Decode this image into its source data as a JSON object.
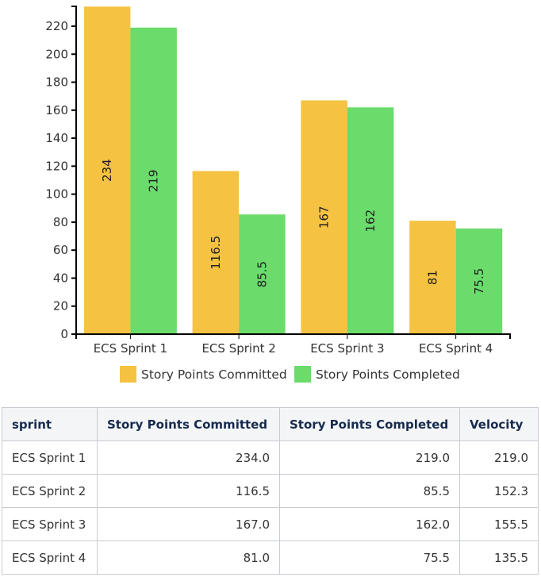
{
  "chart_data": {
    "type": "bar",
    "title": "",
    "xlabel": "",
    "ylabel": "",
    "ylim": [
      0,
      234
    ],
    "yticks": [
      0,
      20,
      40,
      60,
      80,
      100,
      120,
      140,
      160,
      180,
      200,
      220
    ],
    "categories": [
      "ECS Sprint 1",
      "ECS Sprint 2",
      "ECS Sprint 3",
      "ECS Sprint 4"
    ],
    "series": [
      {
        "name": "Story Points Committed",
        "color": "#f5c242",
        "values": [
          234,
          116.5,
          167,
          81
        ],
        "labels": [
          "234",
          "116.5",
          "167",
          "81"
        ]
      },
      {
        "name": "Story Points Completed",
        "color": "#6bdb6b",
        "values": [
          219,
          85.5,
          162,
          75.5
        ],
        "labels": [
          "219",
          "85.5",
          "162",
          "75.5"
        ]
      }
    ],
    "legend_position": "bottom",
    "grid": false
  },
  "table": {
    "headers": [
      "sprint",
      "Story Points Committed",
      "Story Points Completed",
      "Velocity"
    ],
    "rows": [
      [
        "ECS Sprint 1",
        "234.0",
        "219.0",
        "219.0"
      ],
      [
        "ECS Sprint 2",
        "116.5",
        "85.5",
        "152.3"
      ],
      [
        "ECS Sprint 3",
        "167.0",
        "162.0",
        "155.5"
      ],
      [
        "ECS Sprint 4",
        "81.0",
        "75.5",
        "135.5"
      ]
    ]
  }
}
